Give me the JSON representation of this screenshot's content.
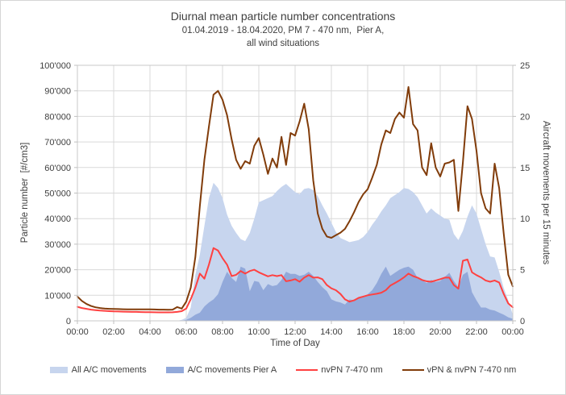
{
  "title": "Diurnal mean particle number concentrations",
  "subtitle1": "01.04.2019 - 18.04.2020, PM 7 - 470 nm,  Pier A,",
  "subtitle2": "all wind situations",
  "axes": {
    "left": {
      "label": "Particle number  [#/cm3]",
      "tick_labels": [
        "0",
        "10'000",
        "20'000",
        "30'000",
        "40'000",
        "50'000",
        "60'000",
        "70'000",
        "80'000",
        "90'000",
        "100'000"
      ]
    },
    "right": {
      "label": "Aircraft movements per 15 minutes",
      "tick_labels": [
        "0",
        "5",
        "10",
        "15",
        "20",
        "25"
      ]
    },
    "x": {
      "label": "Time of Day",
      "tick_labels": [
        "00:00",
        "02:00",
        "04:00",
        "06:00",
        "08:00",
        "10:00",
        "12:00",
        "14:00",
        "16:00",
        "18:00",
        "20:00",
        "22:00",
        "00:00"
      ]
    }
  },
  "colors": {
    "all_ac_area": "#c7d5ee",
    "pier_a_area": "#92a9da",
    "nvpn_line": "#ff4141",
    "vpn_nvpn_line": "#813c0a",
    "grid": "#d9d9d9",
    "plot_border": "#c9c9c9",
    "tick": "#bfbfbf",
    "text": "#404040"
  },
  "legend": [
    {
      "label": "All A/C movements",
      "type": "area",
      "color": "#c7d5ee"
    },
    {
      "label": "A/C movements Pier A",
      "type": "area",
      "color": "#92a9da"
    },
    {
      "label": "nvPN 7-470 nm",
      "type": "line",
      "color": "#ff4141"
    },
    {
      "label": "vPN & nvPN 7-470 nm",
      "type": "line",
      "color": "#813c0a"
    }
  ],
  "chart_data": {
    "type": "area+line combo, diurnal cycle, 15-minute resolution",
    "x_start_hour": 0,
    "x_step_hours": 0.25,
    "x_end_hour": 24,
    "left_ylim": [
      0,
      100000
    ],
    "right_ylim": [
      0,
      25
    ],
    "grid": true,
    "legend_position": "bottom",
    "series": [
      {
        "name": "All A/C movements",
        "axis": "right",
        "type": "area",
        "color": "#c7d5ee",
        "values": [
          0,
          0,
          0,
          0,
          0,
          0,
          0,
          0,
          0,
          0,
          0,
          0,
          0,
          0,
          0,
          0,
          0,
          0,
          0,
          0,
          0,
          0,
          0,
          0.1,
          0.3,
          1.3,
          4.5,
          6.5,
          9.3,
          12.0,
          13.5,
          13.0,
          12.0,
          10.4,
          9.3,
          8.6,
          8.0,
          7.8,
          8.6,
          10.0,
          11.6,
          11.8,
          12.0,
          12.2,
          12.7,
          13.1,
          13.4,
          13.0,
          12.6,
          12.4,
          12.9,
          13.0,
          12.8,
          12.2,
          11.3,
          10.5,
          9.6,
          8.7,
          8.1,
          7.9,
          7.7,
          7.8,
          7.9,
          8.2,
          8.7,
          9.4,
          10.0,
          10.7,
          11.3,
          12.0,
          12.3,
          12.6,
          13.0,
          12.9,
          12.6,
          12.1,
          11.3,
          10.5,
          11.0,
          10.6,
          10.3,
          10.0,
          9.9,
          8.5,
          7.9,
          8.8,
          10.2,
          11.3,
          10.5,
          9.0,
          7.5,
          6.3,
          6.2,
          4.8,
          3.2,
          2.0,
          0.6
        ]
      },
      {
        "name": "A/C movements Pier A",
        "axis": "right",
        "type": "area",
        "color": "#92a9da",
        "values": [
          0,
          0,
          0,
          0,
          0,
          0,
          0,
          0,
          0,
          0,
          0,
          0,
          0,
          0,
          0,
          0,
          0,
          0,
          0,
          0,
          0,
          0,
          0,
          0,
          0.1,
          0.3,
          0.6,
          0.8,
          1.4,
          1.8,
          2.1,
          2.6,
          3.8,
          4.8,
          4.2,
          3.8,
          5.3,
          5.1,
          2.9,
          3.9,
          3.8,
          3.0,
          3.6,
          3.4,
          3.5,
          4.0,
          4.8,
          4.6,
          4.6,
          4.4,
          4.5,
          4.8,
          4.4,
          3.8,
          3.3,
          2.9,
          2.1,
          1.9,
          1.8,
          1.6,
          2.1,
          2.0,
          2.2,
          2.3,
          2.6,
          3.0,
          3.7,
          4.6,
          5.3,
          4.4,
          4.7,
          5.0,
          5.2,
          5.3,
          5.0,
          4.2,
          4.0,
          3.7,
          4.0,
          3.8,
          3.9,
          4.3,
          4.7,
          3.9,
          3.3,
          4.5,
          4.8,
          2.8,
          2.0,
          1.3,
          1.3,
          1.1,
          1.0,
          0.8,
          0.6,
          0.35,
          0.2
        ]
      },
      {
        "name": "nvPN 7-470 nm",
        "axis": "left",
        "type": "line",
        "color": "#ff4141",
        "values": [
          5500,
          5000,
          4700,
          4400,
          4200,
          4000,
          3900,
          3800,
          3700,
          3650,
          3600,
          3550,
          3500,
          3500,
          3450,
          3400,
          3400,
          3350,
          3300,
          3300,
          3300,
          3350,
          3500,
          3800,
          4800,
          8500,
          13000,
          18500,
          16500,
          22000,
          28500,
          27500,
          24500,
          22000,
          17500,
          18000,
          19500,
          18500,
          19500,
          20000,
          19000,
          18200,
          17400,
          17900,
          17500,
          17900,
          15500,
          15800,
          16300,
          15300,
          16900,
          17900,
          16900,
          17000,
          16300,
          14000,
          12700,
          12000,
          10500,
          8400,
          7500,
          8000,
          9000,
          9500,
          10000,
          10300,
          10600,
          11000,
          12000,
          13800,
          14800,
          15800,
          17000,
          18500,
          17500,
          16900,
          16000,
          15500,
          15300,
          15800,
          16300,
          16900,
          16900,
          14000,
          12600,
          23500,
          24000,
          19000,
          17900,
          17000,
          15800,
          15300,
          15800,
          15000,
          10500,
          6800,
          5300
        ]
      },
      {
        "name": "vPN & nvPN 7-470 nm",
        "axis": "left",
        "type": "line",
        "color": "#813c0a",
        "values": [
          9500,
          7800,
          6600,
          5800,
          5300,
          5000,
          4800,
          4700,
          4650,
          4600,
          4550,
          4500,
          4500,
          4500,
          4500,
          4500,
          4500,
          4450,
          4400,
          4400,
          4350,
          4400,
          5400,
          4800,
          7500,
          13000,
          25000,
          45000,
          63000,
          76000,
          88500,
          90000,
          86500,
          80500,
          71000,
          63000,
          59500,
          62500,
          61500,
          68500,
          71500,
          65000,
          57500,
          63500,
          60000,
          72000,
          61000,
          73500,
          72500,
          78000,
          85000,
          75000,
          55000,
          42000,
          36000,
          33000,
          32500,
          33500,
          34500,
          36000,
          39000,
          42500,
          46500,
          49500,
          51500,
          56000,
          61000,
          69000,
          74500,
          73500,
          79000,
          81500,
          79500,
          91500,
          77000,
          74500,
          60000,
          57000,
          69500,
          60000,
          56500,
          61500,
          62000,
          63000,
          43000,
          62000,
          84000,
          79000,
          66500,
          50000,
          44000,
          42000,
          61500,
          52000,
          34000,
          18000,
          13500
        ]
      }
    ]
  }
}
